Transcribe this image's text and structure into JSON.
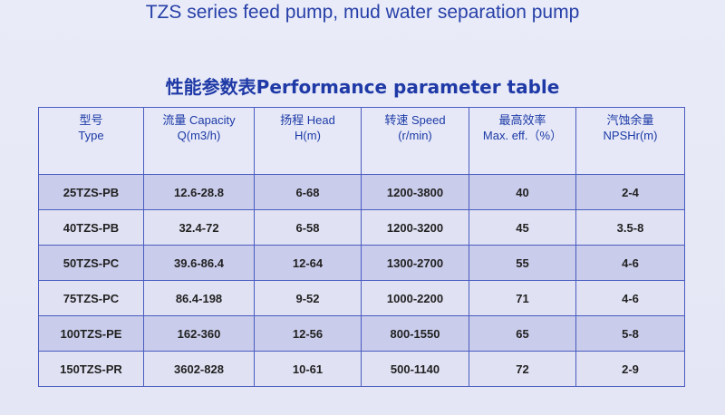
{
  "header": {
    "title": "TZS series feed pump, mud water separation pump",
    "subtitle": "性能参数表Performance parameter table"
  },
  "table": {
    "columns": [
      [
        "型号",
        "Type"
      ],
      [
        "流量 Capacity",
        "Q(m3/h)"
      ],
      [
        "扬程 Head",
        "H(m)"
      ],
      [
        "转速 Speed",
        "(r/min)"
      ],
      [
        "最高效率",
        "Max. eff.（%）"
      ],
      [
        "汽蚀余量",
        "NPSHr(m)"
      ]
    ],
    "rows": [
      [
        "25TZS-PB",
        "12.6-28.8",
        "6-68",
        "1200-3800",
        "40",
        "2-4"
      ],
      [
        "40TZS-PB",
        "32.4-72",
        "6-58",
        "1200-3200",
        "45",
        "3.5-8"
      ],
      [
        "50TZS-PC",
        "39.6-86.4",
        "12-64",
        "1300-2700",
        "55",
        "4-6"
      ],
      [
        "75TZS-PC",
        "86.4-198",
        "9-52",
        "1000-2200",
        "71",
        "4-6"
      ],
      [
        "100TZS-PE",
        "162-360",
        "12-56",
        "800-1550",
        "65",
        "5-8"
      ],
      [
        "150TZS-PR",
        "3602-828",
        "10-61",
        "500-1140",
        "72",
        "2-9"
      ]
    ]
  }
}
